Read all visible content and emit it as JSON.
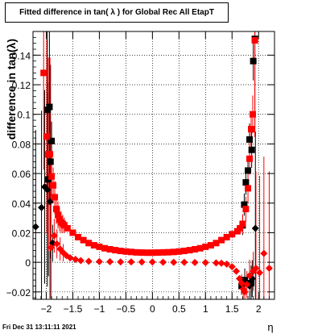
{
  "page": {
    "title": "Fitted difference in tan( λ ) for Global Rec All EtapT",
    "timestamp": "Fri Dec 31 13:11:11 2021"
  },
  "chart_data": {
    "type": "scatter",
    "title": "Fitted difference in tan( λ ) for Global Rec All EtapT",
    "xlabel": "η",
    "ylabel": "difference in tan(λ)",
    "xlim": [
      -2.25,
      2.3
    ],
    "ylim": [
      -0.025,
      0.156
    ],
    "grid": true,
    "x_ticks": [
      -2,
      -1.5,
      -1,
      -0.5,
      0,
      0.5,
      1,
      1.5,
      2
    ],
    "x_tick_labels": [
      "−2",
      "−1.5",
      "−1",
      "−0.5",
      "0",
      "0.5",
      "1",
      "1.5",
      "2"
    ],
    "y_ticks": [
      -0.02,
      0,
      0.02,
      0.04,
      0.06,
      0.08,
      0.1,
      0.12,
      0.14
    ],
    "y_tick_labels": [
      "−0.02",
      "0",
      "0.02",
      "0.04",
      "0.06",
      "0.08",
      "0.1",
      "0.12",
      "0.14"
    ],
    "series": [
      {
        "marker": "square",
        "color": "#000000",
        "points": [
          [
            -1.98,
            0.103
          ],
          [
            -1.94,
            0.105
          ],
          [
            -1.9,
            0.082
          ],
          [
            -1.92,
            0.068
          ],
          [
            -1.96,
            0.056
          ],
          [
            1.7,
            0.025
          ],
          [
            1.73,
            0.039
          ],
          [
            1.76,
            0.054
          ],
          [
            1.8,
            0.062
          ],
          [
            1.83,
            0.083
          ],
          [
            1.87,
            0.076
          ],
          [
            1.9,
            0.136
          ],
          [
            1.93,
            0.151
          ],
          [
            1.68,
            -0.016
          ],
          [
            1.74,
            -0.012
          ],
          [
            1.86,
            -0.014
          ]
        ]
      },
      {
        "marker": "diamond",
        "color": "#000000",
        "points": [
          [
            -2.2,
            0.024
          ],
          [
            -2.09,
            0.037
          ],
          [
            -2.03,
            0.051
          ],
          [
            -1.98,
            0.049
          ],
          [
            -1.93,
            0.041
          ],
          [
            -1.88,
            0.013
          ],
          [
            1.83,
            -0.016
          ],
          [
            1.88,
            -0.011
          ],
          [
            1.94,
            0.023
          ]
        ]
      },
      {
        "marker": "square",
        "color": "#ff0000",
        "points": [
          [
            -2.05,
            0.128
          ],
          [
            -1.99,
            0.085
          ],
          [
            -1.96,
            0.073
          ],
          [
            -1.93,
            0.073
          ],
          [
            -1.9,
            0.058
          ],
          [
            -1.87,
            0.052
          ],
          [
            -1.84,
            0.044
          ],
          [
            -1.81,
            0.036
          ],
          [
            -1.78,
            0.032
          ],
          [
            -1.75,
            0.029
          ],
          [
            -1.72,
            0.027
          ],
          [
            -1.69,
            0.026
          ],
          [
            -1.66,
            0.025
          ],
          [
            -1.6,
            0.023
          ],
          [
            -1.5,
            0.02
          ],
          [
            -1.4,
            0.017
          ],
          [
            -1.3,
            0.015
          ],
          [
            -1.2,
            0.013
          ],
          [
            -1.1,
            0.0115
          ],
          [
            -1.0,
            0.0105
          ],
          [
            -0.9,
            0.0095
          ],
          [
            -0.8,
            0.0088
          ],
          [
            -0.7,
            0.0082
          ],
          [
            -0.6,
            0.0077
          ],
          [
            -0.5,
            0.0073
          ],
          [
            -0.4,
            0.007
          ],
          [
            -0.3,
            0.0067
          ],
          [
            -0.2,
            0.0066
          ],
          [
            -0.1,
            0.0065
          ],
          [
            0.0,
            0.0065
          ],
          [
            0.1,
            0.0066
          ],
          [
            0.2,
            0.0067
          ],
          [
            0.3,
            0.0068
          ],
          [
            0.4,
            0.007
          ],
          [
            0.5,
            0.0073
          ],
          [
            0.6,
            0.0077
          ],
          [
            0.7,
            0.0082
          ],
          [
            0.8,
            0.0088
          ],
          [
            0.9,
            0.0095
          ],
          [
            1.0,
            0.0105
          ],
          [
            1.1,
            0.0115
          ],
          [
            1.2,
            0.013
          ],
          [
            1.3,
            0.015
          ],
          [
            1.4,
            0.017
          ],
          [
            1.5,
            0.019
          ],
          [
            1.6,
            0.021
          ],
          [
            1.65,
            0.023
          ],
          [
            1.7,
            0.026
          ],
          [
            1.76,
            0.036
          ],
          [
            1.8,
            0.05
          ],
          [
            1.83,
            0.07
          ],
          [
            1.86,
            0.09
          ],
          [
            1.89,
            0.1
          ],
          [
            1.93,
            0.15
          ]
        ]
      },
      {
        "marker": "diamond",
        "color": "#ff0000",
        "points": [
          [
            -1.91,
            0.01
          ],
          [
            -1.85,
            0.018
          ],
          [
            -1.8,
            0.0125
          ],
          [
            -1.74,
            0.009
          ],
          [
            -1.68,
            0.0065
          ],
          [
            -1.62,
            0.0045
          ],
          [
            -1.55,
            0.003
          ],
          [
            -1.45,
            0.002
          ],
          [
            -1.35,
            0.0012
          ],
          [
            -1.2,
            0.0007
          ],
          [
            -1.0,
            0.0005
          ],
          [
            -0.8,
            0.0004
          ],
          [
            -0.6,
            0.0003
          ],
          [
            -0.4,
            0.0003
          ],
          [
            -0.2,
            0.0002
          ],
          [
            0.0,
            0.0002
          ],
          [
            0.2,
            0.0001
          ],
          [
            0.4,
            0.0
          ],
          [
            0.6,
            0.0
          ],
          [
            0.8,
            -0.0001
          ],
          [
            1.0,
            -0.0002
          ],
          [
            1.2,
            -0.0004
          ],
          [
            1.3,
            -0.0006
          ],
          [
            1.4,
            -0.0012
          ],
          [
            1.5,
            -0.003
          ],
          [
            1.58,
            -0.006
          ],
          [
            1.64,
            -0.011
          ],
          [
            1.68,
            -0.014
          ],
          [
            1.71,
            -0.018
          ],
          [
            1.74,
            -0.02
          ],
          [
            1.78,
            -0.015
          ],
          [
            1.83,
            -0.009
          ],
          [
            1.9,
            -0.006
          ],
          [
            1.95,
            -0.004
          ],
          [
            2.02,
            -0.007
          ],
          [
            2.1,
            0.006
          ],
          [
            2.2,
            -0.004
          ]
        ]
      }
    ]
  }
}
